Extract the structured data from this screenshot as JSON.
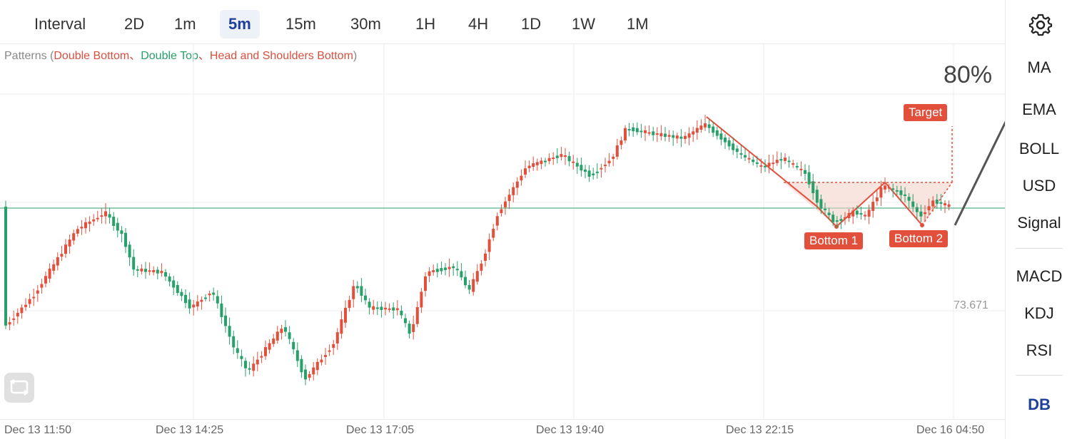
{
  "toolbar": {
    "interval_label": "Interval",
    "intervals": [
      {
        "label": "2D",
        "active": false
      },
      {
        "label": "1m",
        "active": false
      },
      {
        "label": "5m",
        "active": true
      },
      {
        "label": "15m",
        "active": false
      },
      {
        "label": "30m",
        "active": false
      },
      {
        "label": "1H",
        "active": false
      },
      {
        "label": "4H",
        "active": false
      },
      {
        "label": "1D",
        "active": false
      },
      {
        "label": "1W",
        "active": false
      },
      {
        "label": "1M",
        "active": false
      }
    ]
  },
  "patterns": {
    "prefix": "Patterns (",
    "double_bottom": "Double Bottom",
    "sep1": "、",
    "double_top": "Double Top",
    "sep2": "、",
    "hs_bottom": "Head and Shoulders Bottom",
    "suffix": ")"
  },
  "sidebar": {
    "settings_icon": "gear-icon",
    "items_top": [
      "MA",
      "EMA",
      "BOLL",
      "USD",
      "Signal"
    ],
    "items_bottom": [
      "MACD",
      "KDJ",
      "RSI"
    ],
    "active_item": "DB"
  },
  "chart": {
    "price_label": "73.671",
    "confidence": "80%",
    "target_label": "Target",
    "bottom1_label": "Bottom 1",
    "bottom2_label": "Bottom 2",
    "time_labels": [
      "Dec 13 11:50",
      "Dec 13 14:25",
      "Dec 13 17:05",
      "Dec 13 19:40",
      "Dec 13 22:15",
      "Dec 16 04:50"
    ],
    "colors": {
      "up": "#e2503c",
      "down": "#27a06a",
      "grid": "#eeeeee",
      "accent": "#1f3f9c"
    }
  }
}
